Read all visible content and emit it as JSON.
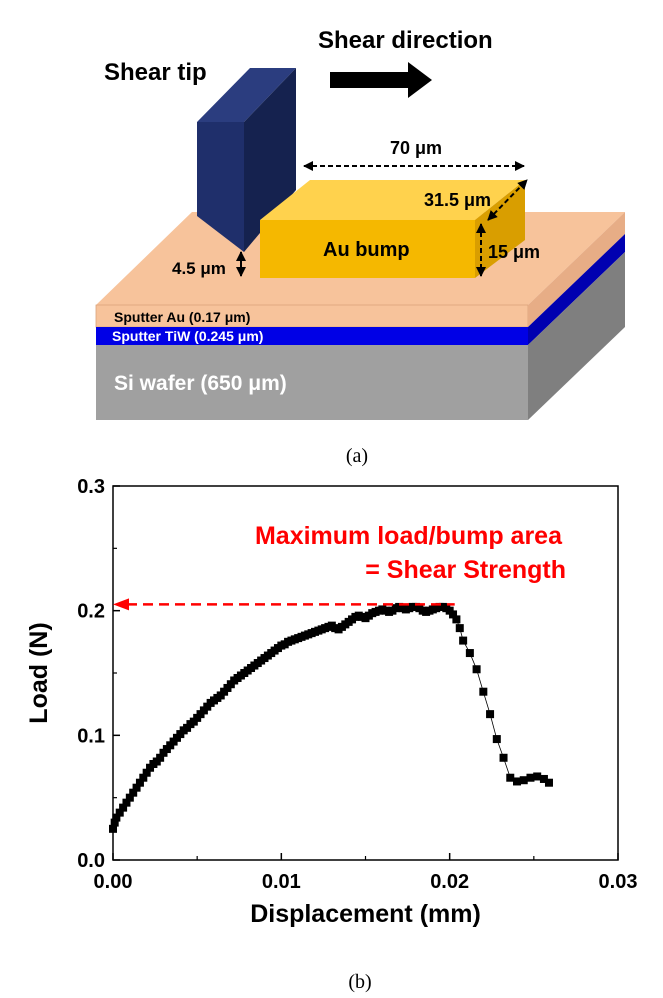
{
  "diagram": {
    "shear_tip_label": "Shear tip",
    "shear_direction_label": "Shear direction",
    "width_label": "70 μm",
    "depth_label": "31.5 μm",
    "height_label": "15 μm",
    "gap_label": "4.5 μm",
    "bump_label": "Au bump",
    "au_layer_label": "Sputter Au (0.17 μm)",
    "tiw_layer_label": "Sputter TiW (0.245 μm)",
    "wafer_label": "Si wafer (650 μm)",
    "caption": "(a)",
    "colors": {
      "tip": "#1f2f6b",
      "bump": "#f5b800",
      "au_layer": "#f7c39b",
      "tiw_layer": "#0000e6",
      "wafer": "#a0a0a0"
    }
  },
  "chart_data": {
    "type": "scatter",
    "title": "",
    "annotation_line1": "Maximum load/bump area",
    "annotation_line2": "= Shear Strength",
    "xlabel": "Displacement (mm)",
    "ylabel": "Load (N)",
    "xlim": [
      0.0,
      0.03
    ],
    "ylim": [
      0.0,
      0.3
    ],
    "xticks": [
      "0.00",
      "0.01",
      "0.02",
      "0.03"
    ],
    "yticks": [
      "0.0",
      "0.1",
      "0.2",
      "0.3"
    ],
    "max_load": 0.205,
    "max_load_x": 0.0203,
    "caption": "(b)",
    "series": [
      {
        "marker": "square",
        "color": "#000000",
        "points": [
          [
            0.0,
            0.025
          ],
          [
            0.0001,
            0.03
          ],
          [
            0.0002,
            0.034
          ],
          [
            0.0004,
            0.038
          ],
          [
            0.0006,
            0.042
          ],
          [
            0.0008,
            0.046
          ],
          [
            0.001,
            0.05
          ],
          [
            0.0012,
            0.054
          ],
          [
            0.0014,
            0.058
          ],
          [
            0.0016,
            0.062
          ],
          [
            0.0018,
            0.066
          ],
          [
            0.002,
            0.07
          ],
          [
            0.0022,
            0.074
          ],
          [
            0.0024,
            0.077
          ],
          [
            0.0026,
            0.079
          ],
          [
            0.0028,
            0.082
          ],
          [
            0.003,
            0.086
          ],
          [
            0.0032,
            0.089
          ],
          [
            0.0034,
            0.092
          ],
          [
            0.0036,
            0.095
          ],
          [
            0.0038,
            0.098
          ],
          [
            0.004,
            0.101
          ],
          [
            0.0042,
            0.104
          ],
          [
            0.0044,
            0.106
          ],
          [
            0.0046,
            0.109
          ],
          [
            0.0048,
            0.111
          ],
          [
            0.005,
            0.114
          ],
          [
            0.0052,
            0.117
          ],
          [
            0.0054,
            0.12
          ],
          [
            0.0056,
            0.123
          ],
          [
            0.0058,
            0.126
          ],
          [
            0.006,
            0.128
          ],
          [
            0.0062,
            0.13
          ],
          [
            0.0064,
            0.132
          ],
          [
            0.0066,
            0.135
          ],
          [
            0.0068,
            0.138
          ],
          [
            0.007,
            0.141
          ],
          [
            0.0072,
            0.144
          ],
          [
            0.0074,
            0.146
          ],
          [
            0.0076,
            0.148
          ],
          [
            0.0078,
            0.15
          ],
          [
            0.008,
            0.152
          ],
          [
            0.0082,
            0.154
          ],
          [
            0.0084,
            0.156
          ],
          [
            0.0086,
            0.158
          ],
          [
            0.0088,
            0.16
          ],
          [
            0.009,
            0.162
          ],
          [
            0.0092,
            0.164
          ],
          [
            0.0094,
            0.166
          ],
          [
            0.0096,
            0.168
          ],
          [
            0.0098,
            0.17
          ],
          [
            0.01,
            0.172
          ],
          [
            0.0102,
            0.173
          ],
          [
            0.0104,
            0.175
          ],
          [
            0.0106,
            0.176
          ],
          [
            0.0108,
            0.177
          ],
          [
            0.011,
            0.178
          ],
          [
            0.0112,
            0.179
          ],
          [
            0.0114,
            0.18
          ],
          [
            0.0116,
            0.181
          ],
          [
            0.0118,
            0.182
          ],
          [
            0.012,
            0.183
          ],
          [
            0.0122,
            0.184
          ],
          [
            0.0124,
            0.185
          ],
          [
            0.0126,
            0.186
          ],
          [
            0.0128,
            0.187
          ],
          [
            0.013,
            0.188
          ],
          [
            0.0132,
            0.186
          ],
          [
            0.0134,
            0.185
          ],
          [
            0.0136,
            0.187
          ],
          [
            0.0138,
            0.189
          ],
          [
            0.014,
            0.191
          ],
          [
            0.0142,
            0.193
          ],
          [
            0.0144,
            0.195
          ],
          [
            0.0146,
            0.196
          ],
          [
            0.0148,
            0.195
          ],
          [
            0.015,
            0.194
          ],
          [
            0.0152,
            0.196
          ],
          [
            0.0154,
            0.198
          ],
          [
            0.0156,
            0.199
          ],
          [
            0.0158,
            0.2
          ],
          [
            0.016,
            0.201
          ],
          [
            0.0162,
            0.2
          ],
          [
            0.0164,
            0.199
          ],
          [
            0.0166,
            0.2
          ],
          [
            0.0168,
            0.202
          ],
          [
            0.017,
            0.203
          ],
          [
            0.0172,
            0.202
          ],
          [
            0.0174,
            0.201
          ],
          [
            0.0176,
            0.202
          ],
          [
            0.0178,
            0.203
          ],
          [
            0.018,
            0.203
          ],
          [
            0.0182,
            0.202
          ],
          [
            0.0184,
            0.2
          ],
          [
            0.0186,
            0.199
          ],
          [
            0.0188,
            0.2
          ],
          [
            0.019,
            0.201
          ],
          [
            0.0192,
            0.202
          ],
          [
            0.0194,
            0.203
          ],
          [
            0.0196,
            0.203
          ],
          [
            0.0198,
            0.202
          ],
          [
            0.02,
            0.2
          ],
          [
            0.0202,
            0.197
          ],
          [
            0.0204,
            0.193
          ],
          [
            0.0206,
            0.186
          ],
          [
            0.0208,
            0.176
          ],
          [
            0.0212,
            0.166
          ],
          [
            0.0216,
            0.153
          ],
          [
            0.022,
            0.135
          ],
          [
            0.0224,
            0.117
          ],
          [
            0.0228,
            0.097
          ],
          [
            0.0232,
            0.082
          ],
          [
            0.0236,
            0.066
          ],
          [
            0.024,
            0.063
          ],
          [
            0.0244,
            0.064
          ],
          [
            0.0248,
            0.066
          ],
          [
            0.0252,
            0.067
          ],
          [
            0.0256,
            0.065
          ],
          [
            0.0259,
            0.062
          ]
        ]
      }
    ]
  }
}
